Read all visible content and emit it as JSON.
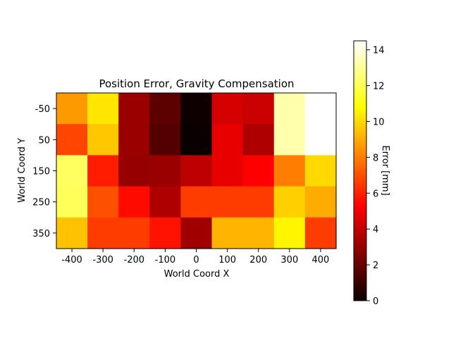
{
  "chart_data": {
    "type": "heatmap",
    "title": "Position Error, Gravity Compensation",
    "xlabel": "World Coord X",
    "ylabel": "World Coord Y",
    "x": [
      -400,
      -300,
      -200,
      -100,
      0,
      100,
      200,
      300,
      400
    ],
    "y": [
      -50,
      50,
      150,
      250,
      350
    ],
    "x_tick_labels": [
      "-400",
      "-300",
      "-200",
      "-100",
      "0",
      "100",
      "200",
      "300",
      "400"
    ],
    "y_tick_labels": [
      "-50",
      "50",
      "150",
      "250",
      "350"
    ],
    "values": [
      [
        8.6,
        10.3,
        3.0,
        1.7,
        0.1,
        4.2,
        4.0,
        13.3,
        14.5
      ],
      [
        6.8,
        9.6,
        3.0,
        1.5,
        0.0,
        4.6,
        3.4,
        13.3,
        14.5
      ],
      [
        12.2,
        5.9,
        2.9,
        3.0,
        3.7,
        4.6,
        5.2,
        8.0,
        10.0
      ],
      [
        12.1,
        7.0,
        5.5,
        3.4,
        6.6,
        6.6,
        6.6,
        9.8,
        9.0
      ],
      [
        9.5,
        6.6,
        6.6,
        5.7,
        3.1,
        9.2,
        9.2,
        10.6,
        6.6
      ]
    ],
    "colormap": "hot",
    "colorbar": {
      "label": "Error [mm]",
      "range": [
        0,
        14.5
      ],
      "ticks": [
        0,
        2,
        4,
        6,
        8,
        10,
        12,
        14
      ],
      "tick_labels": [
        "0",
        "2",
        "4",
        "6",
        "8",
        "10",
        "12",
        "14"
      ]
    }
  }
}
